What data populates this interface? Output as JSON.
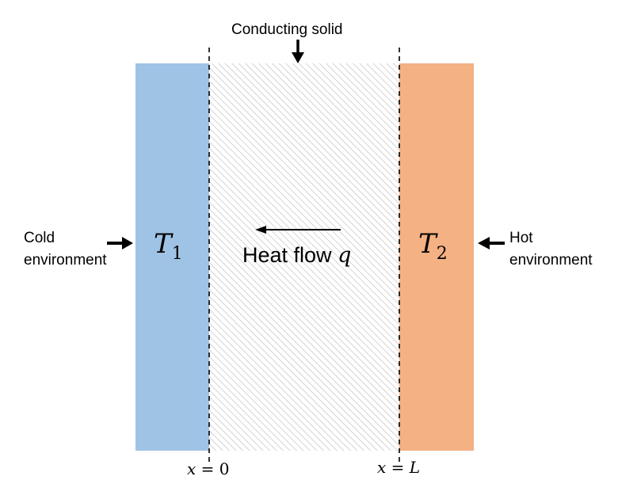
{
  "labels": {
    "title": "Conducting solid",
    "cold_line1": "Cold",
    "cold_line2": "environment",
    "hot_line1": "Hot",
    "hot_line2": "environment",
    "heat_flow_text": "Heat flow",
    "heat_flow_symbol": "q",
    "t1_symbol": "T",
    "t1_sub": "1",
    "t2_symbol": "T",
    "t2_sub": "2",
    "x0_var": "x",
    "x0_eq": " = ",
    "x0_val": "0",
    "xL_var": "x",
    "xL_eq": " = ",
    "xL_val": "L"
  },
  "colors": {
    "cold": "#9fc3e5",
    "hot": "#f4b183",
    "hatch": "#c8c8c8",
    "line": "#000000"
  },
  "icons": {
    "arrows": [
      "arrow-down-icon",
      "arrow-right-icon",
      "arrow-left-icon",
      "heat-flow-arrow-icon"
    ]
  }
}
